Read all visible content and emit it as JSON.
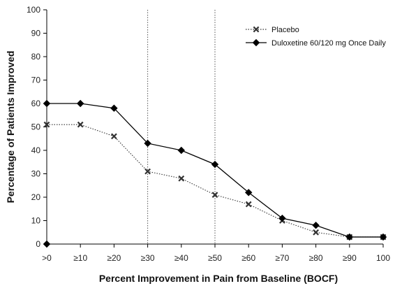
{
  "chart_data": {
    "type": "line",
    "title": "",
    "xlabel": "Percent Improvement in Pain from Baseline (BOCF)",
    "ylabel": "Percentage of Patients Improved",
    "categories": [
      ">0",
      "≥10",
      "≥20",
      "≥30",
      "≥40",
      "≥50",
      "≥60",
      "≥70",
      "≥80",
      "≥90",
      "100"
    ],
    "ylim": [
      0,
      100
    ],
    "yticks": [
      0,
      10,
      20,
      30,
      40,
      50,
      60,
      70,
      80,
      90,
      100
    ],
    "grid": false,
    "reference_lines_at": [
      "≥30",
      "≥50"
    ],
    "legend_position": "top-right",
    "series": [
      {
        "name": "Placebo",
        "marker": "x",
        "line_style": "dotted",
        "color": "#333333",
        "values": [
          51,
          51,
          46,
          31,
          28,
          21,
          17,
          10,
          5,
          3,
          3
        ]
      },
      {
        "name": "Duloxetine 60/120 mg Once Daily",
        "marker": "diamond",
        "line_style": "solid",
        "color": "#000000",
        "values": [
          60,
          60,
          58,
          43,
          40,
          34,
          22,
          11,
          8,
          3,
          3
        ]
      }
    ],
    "extra_points": [
      {
        "category": ">0",
        "value": 0,
        "marker": "diamond"
      }
    ]
  }
}
